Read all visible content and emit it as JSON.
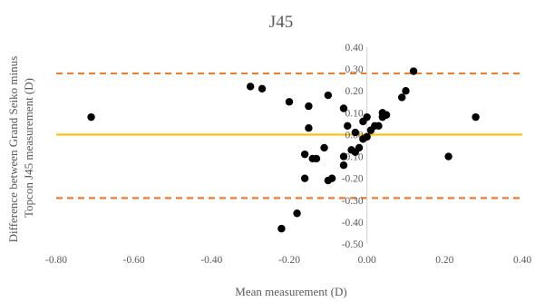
{
  "chart_data": {
    "type": "scatter",
    "title": "J45",
    "xlabel": "Mean measurement (D)",
    "ylabel_lines": [
      "Difference between Grand Seiko minus",
      "Topcon J45 measurement (D)"
    ],
    "xlim": [
      -0.8,
      0.4
    ],
    "ylim": [
      -0.5,
      0.4
    ],
    "x_ticks": [
      -0.8,
      -0.6,
      -0.4,
      -0.2,
      0.0,
      0.2,
      0.4
    ],
    "x_tick_labels": [
      "-0.80",
      "-0.60",
      "-0.40",
      "-0.20",
      "0.00",
      "0.20",
      "0.40"
    ],
    "y_ticks": [
      0.4,
      0.3,
      0.2,
      0.1,
      0.0,
      -0.1,
      -0.2,
      -0.3,
      -0.4,
      -0.5
    ],
    "y_tick_labels": [
      "0.40",
      "0.30",
      "0.20",
      "0.10",
      "0.00",
      "-0.10",
      "-0.20",
      "-0.30",
      "-0.40",
      "-0.50"
    ],
    "grid": false,
    "point_color": "#000000",
    "mean_line": {
      "y": 0.0,
      "color": "#ffc000"
    },
    "limit_lines": [
      {
        "y": 0.28,
        "color": "#ed7d31",
        "dash": true
      },
      {
        "y": -0.29,
        "color": "#ed7d31",
        "dash": true
      }
    ],
    "points": [
      [
        -0.71,
        0.08
      ],
      [
        -0.3,
        0.22
      ],
      [
        -0.27,
        0.21
      ],
      [
        -0.2,
        0.15
      ],
      [
        -0.15,
        0.13
      ],
      [
        -0.15,
        0.03
      ],
      [
        -0.16,
        -0.09
      ],
      [
        -0.14,
        -0.11
      ],
      [
        -0.13,
        -0.11
      ],
      [
        -0.16,
        -0.2
      ],
      [
        -0.1,
        -0.21
      ],
      [
        -0.09,
        -0.2
      ],
      [
        -0.11,
        -0.06
      ],
      [
        -0.1,
        0.18
      ],
      [
        -0.22,
        -0.43
      ],
      [
        -0.18,
        -0.36
      ],
      [
        -0.06,
        0.12
      ],
      [
        -0.06,
        -0.1
      ],
      [
        -0.06,
        -0.14
      ],
      [
        -0.05,
        0.04
      ],
      [
        -0.04,
        -0.07
      ],
      [
        -0.03,
        0.01
      ],
      [
        -0.03,
        -0.08
      ],
      [
        -0.02,
        -0.06
      ],
      [
        -0.01,
        -0.02
      ],
      [
        0.0,
        -0.01
      ],
      [
        0.0,
        0.08
      ],
      [
        -0.01,
        0.06
      ],
      [
        0.01,
        0.02
      ],
      [
        0.02,
        0.04
      ],
      [
        0.03,
        0.04
      ],
      [
        0.04,
        0.1
      ],
      [
        0.04,
        0.08
      ],
      [
        0.05,
        0.09
      ],
      [
        0.09,
        0.17
      ],
      [
        0.1,
        0.2
      ],
      [
        0.12,
        0.29
      ],
      [
        0.21,
        -0.1
      ],
      [
        0.28,
        0.08
      ]
    ]
  }
}
